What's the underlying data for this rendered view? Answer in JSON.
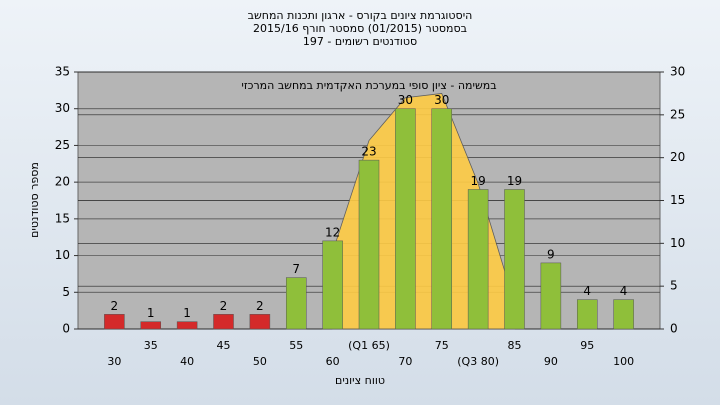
{
  "chart_data": {
    "type": "bar",
    "title": "היסטוגרמת ציונים בקורס - ארגון ותכנות המחשב",
    "subtitle": "בסמסטר  (01/2015)  סמסטר חורף 2015/16",
    "subtitle2": "סטודנטים רשומים - 197",
    "annotation": "במשימה - ציון סופי במערכת האקדמית במחשב המרכזי",
    "x_label": "טווח ציונים",
    "y_label": "מספר סטודנטים",
    "categories": [
      "30",
      "35",
      "40",
      "45",
      "50",
      "55",
      "60",
      "(Q1 65)",
      "70",
      "75",
      "(Q3 80)",
      "85",
      "90",
      "95",
      "100"
    ],
    "values": [
      2,
      1,
      1,
      2,
      2,
      7,
      12,
      23,
      30,
      30,
      19,
      19,
      9,
      4,
      4
    ],
    "colors": [
      "#d42a2a",
      "#d42a2a",
      "#d42a2a",
      "#d42a2a",
      "#d42a2a",
      "#8fbf3a",
      "#8fbf3a",
      "#8fbf3a",
      "#8fbf3a",
      "#8fbf3a",
      "#8fbf3a",
      "#8fbf3a",
      "#8fbf3a",
      "#8fbf3a",
      "#8fbf3a"
    ],
    "curve": {
      "color": "#ffcc44",
      "axis": "y2",
      "values": [
        null,
        null,
        null,
        null,
        null,
        null,
        9,
        22,
        27,
        27.5,
        17,
        3,
        null,
        null,
        null
      ]
    },
    "ylim": [
      0,
      35
    ],
    "yticks": [
      0,
      5,
      10,
      15,
      20,
      25,
      30,
      35
    ],
    "y2lim": [
      0,
      30
    ],
    "y2ticks": [
      0,
      5,
      10,
      15,
      20,
      25,
      30
    ],
    "grid": true
  }
}
